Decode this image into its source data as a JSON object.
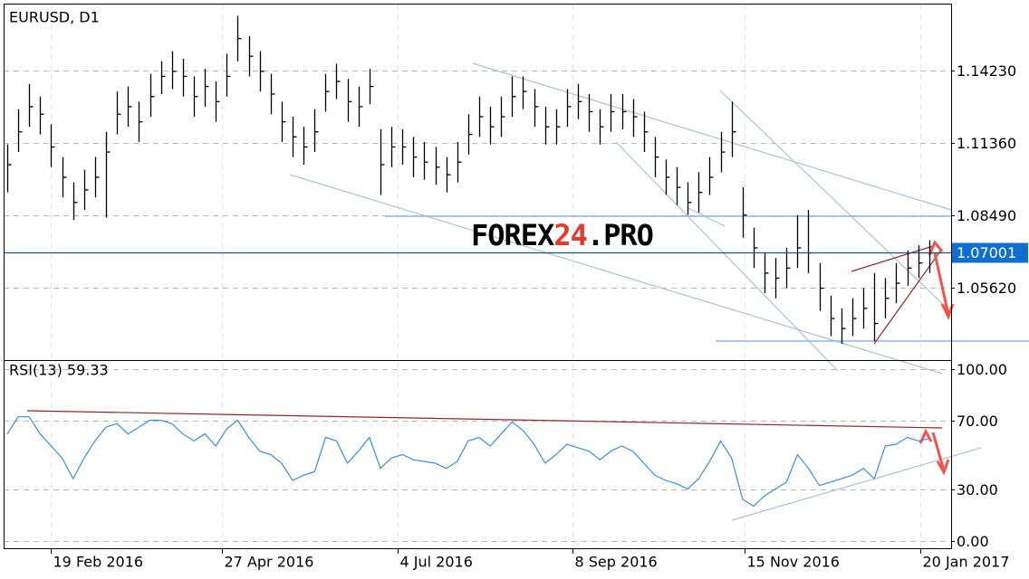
{
  "chart_data": [
    {
      "type": "ohlc",
      "title": "EURUSD, D1",
      "watermark": [
        "FOREX",
        "24",
        ".PRO"
      ],
      "xlim": [
        0,
        86
      ],
      "ylim": [
        1.0275,
        1.1685
      ],
      "yticks": [
        {
          "value": 1.1423,
          "label": "1.14230"
        },
        {
          "value": 1.1136,
          "label": "1.11360"
        },
        {
          "value": 1.0849,
          "label": "1.08490"
        },
        {
          "value": 1.0562,
          "label": "1.05620"
        }
      ],
      "last_price": 1.07001,
      "color": "#000000",
      "grid": true,
      "high": [
        1.113,
        1.127,
        1.137,
        1.132,
        1.121,
        1.108,
        1.098,
        1.103,
        1.108,
        1.118,
        1.134,
        1.136,
        1.13,
        1.141,
        1.146,
        1.15,
        1.147,
        1.14,
        1.143,
        1.138,
        1.149,
        1.164,
        1.156,
        1.15,
        1.141,
        1.13,
        1.124,
        1.12,
        1.127,
        1.141,
        1.145,
        1.139,
        1.136,
        1.143,
        1.119,
        1.12,
        1.119,
        1.116,
        1.114,
        1.112,
        1.108,
        1.114,
        1.125,
        1.132,
        1.128,
        1.132,
        1.14,
        1.14,
        1.135,
        1.128,
        1.127,
        1.135,
        1.137,
        1.133,
        1.127,
        1.133,
        1.133,
        1.131,
        1.126,
        1.116,
        1.107,
        1.104,
        1.098,
        1.102,
        1.108,
        1.118,
        1.13,
        1.096,
        1.08,
        1.07,
        1.068,
        1.072,
        1.085,
        1.087,
        1.066,
        1.053,
        1.048,
        1.052,
        1.056,
        1.062,
        1.06,
        1.066,
        1.071,
        1.073,
        1.075
      ],
      "low": [
        1.094,
        1.11,
        1.12,
        1.117,
        1.104,
        1.092,
        1.083,
        1.087,
        1.092,
        1.084,
        1.117,
        1.12,
        1.114,
        1.124,
        1.133,
        1.135,
        1.132,
        1.124,
        1.128,
        1.122,
        1.132,
        1.146,
        1.14,
        1.134,
        1.125,
        1.114,
        1.108,
        1.105,
        1.11,
        1.126,
        1.131,
        1.122,
        1.12,
        1.129,
        1.093,
        1.104,
        1.105,
        1.1,
        1.099,
        1.097,
        1.094,
        1.098,
        1.109,
        1.116,
        1.113,
        1.116,
        1.124,
        1.127,
        1.12,
        1.113,
        1.113,
        1.12,
        1.123,
        1.118,
        1.113,
        1.118,
        1.119,
        1.116,
        1.11,
        1.1,
        1.093,
        1.089,
        1.085,
        1.086,
        1.093,
        1.102,
        1.108,
        1.076,
        1.064,
        1.054,
        1.052,
        1.056,
        1.064,
        1.062,
        1.047,
        1.037,
        1.034,
        1.037,
        1.04,
        1.035,
        1.044,
        1.05,
        1.057,
        1.06,
        1.062
      ],
      "close": [
        1.105,
        1.118,
        1.128,
        1.125,
        1.112,
        1.1,
        1.09,
        1.095,
        1.1,
        1.11,
        1.125,
        1.128,
        1.122,
        1.132,
        1.14,
        1.142,
        1.14,
        1.132,
        1.136,
        1.13,
        1.14,
        1.155,
        1.148,
        1.142,
        1.133,
        1.122,
        1.116,
        1.112,
        1.118,
        1.134,
        1.138,
        1.13,
        1.128,
        1.136,
        1.105,
        1.112,
        1.112,
        1.108,
        1.106,
        1.104,
        1.101,
        1.106,
        1.117,
        1.124,
        1.12,
        1.124,
        1.132,
        1.134,
        1.128,
        1.12,
        1.12,
        1.128,
        1.13,
        1.126,
        1.12,
        1.126,
        1.126,
        1.124,
        1.118,
        1.108,
        1.1,
        1.096,
        1.09,
        1.094,
        1.1,
        1.11,
        1.118,
        1.085,
        1.072,
        1.062,
        1.06,
        1.064,
        1.072,
        1.07,
        1.056,
        1.044,
        1.04,
        1.044,
        1.048,
        1.042,
        1.052,
        1.058,
        1.064,
        1.066,
        1.07
      ]
    },
    {
      "type": "line",
      "title": "RSI(13) 59.33",
      "color": "#3a8fd6",
      "grid": true,
      "xlim": [
        0,
        86
      ],
      "ylim": [
        -5,
        105
      ],
      "yticks": [
        {
          "value": 100,
          "label": "100.00"
        },
        {
          "value": 70,
          "label": "70.00"
        },
        {
          "value": 30,
          "label": "30.00"
        },
        {
          "value": 0,
          "label": "0.00"
        }
      ],
      "xticks": [
        {
          "value": 4,
          "label": "19 Feb 2016"
        },
        {
          "value": 19.6,
          "label": "27 Apr 2016"
        },
        {
          "value": 35.6,
          "label": "4 Jul 2016"
        },
        {
          "value": 51.5,
          "label": "8 Sep 2016"
        },
        {
          "value": 67.2,
          "label": "15 Nov 2016"
        },
        {
          "value": 83.2,
          "label": "20 Jan 2017"
        }
      ],
      "values": [
        62,
        72,
        72,
        62,
        55,
        48,
        36,
        48,
        58,
        66,
        68,
        62,
        66,
        70,
        70,
        68,
        62,
        58,
        62,
        55,
        65,
        70,
        60,
        52,
        50,
        45,
        35,
        38,
        40,
        60,
        58,
        45,
        52,
        60,
        42,
        48,
        50,
        47,
        46,
        45,
        42,
        46,
        58,
        60,
        55,
        62,
        69,
        64,
        56,
        45,
        50,
        56,
        54,
        52,
        47,
        52,
        55,
        52,
        45,
        38,
        35,
        33,
        30,
        36,
        46,
        58,
        48,
        24,
        20,
        26,
        30,
        34,
        50,
        42,
        32,
        34,
        36,
        38,
        42,
        36,
        55,
        56,
        60,
        58,
        59.33
      ]
    }
  ]
}
